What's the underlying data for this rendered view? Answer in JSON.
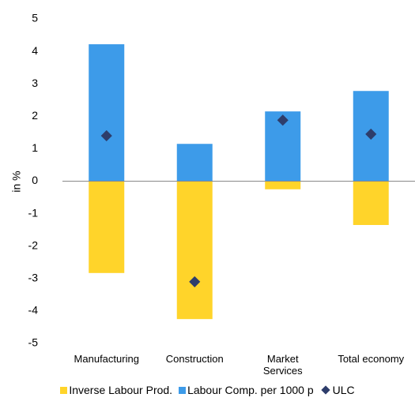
{
  "chart_data": {
    "type": "bar",
    "stacked": true,
    "y_label": "in %",
    "categories": [
      "Manufacturing",
      "Construction",
      "Market Services",
      "Total economy"
    ],
    "series": [
      {
        "name": "Inverse Labour Prod.",
        "type": "bar",
        "color": "#ffd42a",
        "values": [
          -2.83,
          -4.25,
          -0.25,
          -1.35
        ]
      },
      {
        "name": "Labour Comp. per 1000 p",
        "type": "bar",
        "color": "#3d9be9",
        "values": [
          4.22,
          1.15,
          2.15,
          2.78
        ]
      },
      {
        "name": "ULC",
        "type": "marker",
        "marker": "diamond",
        "color": "#2e3d6b",
        "values": [
          1.4,
          -3.1,
          1.88,
          1.45
        ]
      }
    ],
    "ylim": [
      -5,
      5
    ],
    "yticks": [
      -5,
      -4,
      -3,
      -2,
      -1,
      0,
      1,
      2,
      3,
      4,
      5
    ],
    "grid": false
  }
}
